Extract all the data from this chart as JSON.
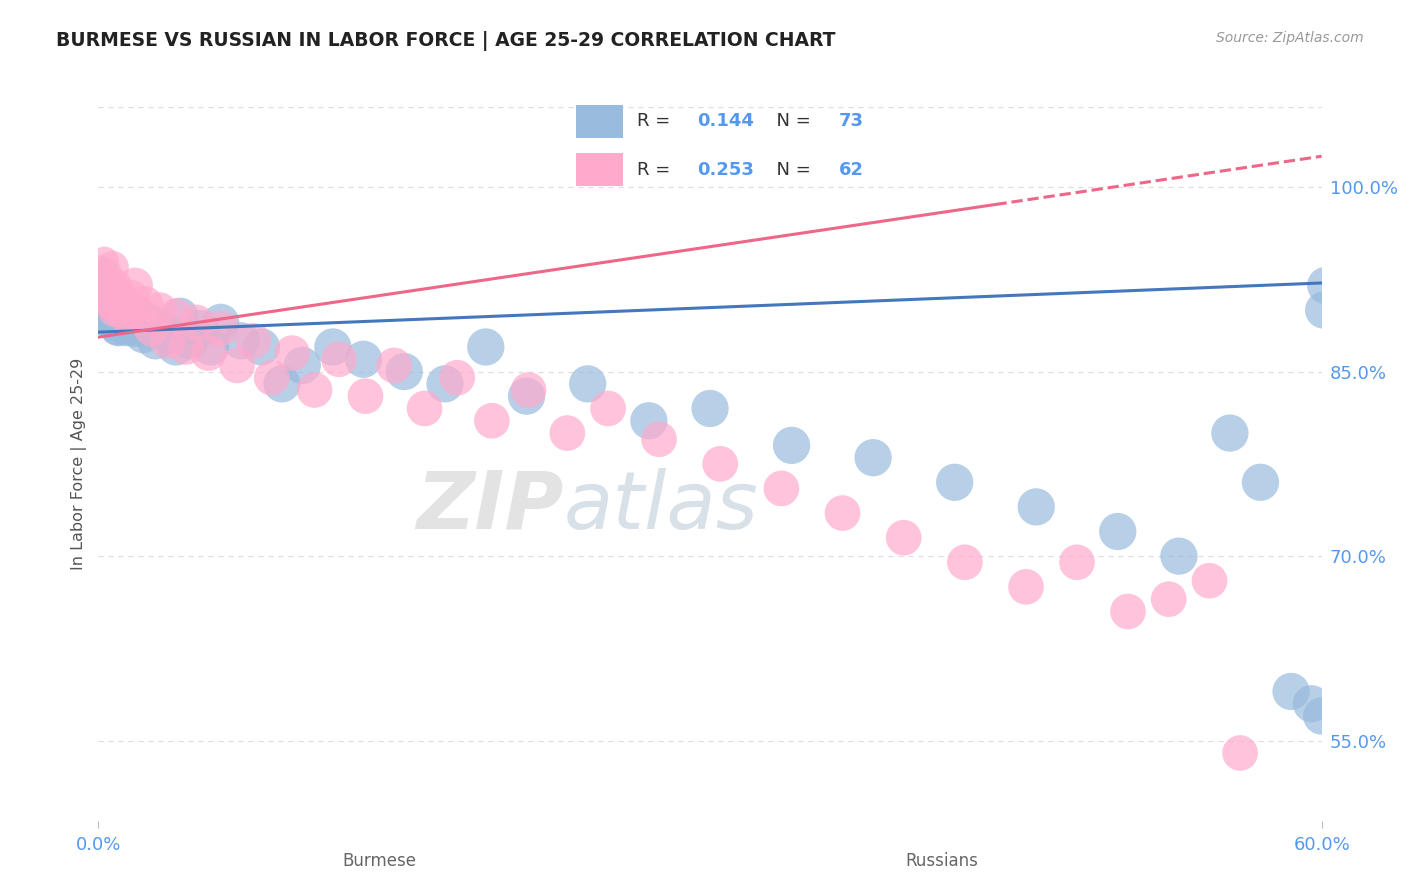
{
  "title": "BURMESE VS RUSSIAN IN LABOR FORCE | AGE 25-29 CORRELATION CHART",
  "source": "Source: ZipAtlas.com",
  "ylabel": "In Labor Force | Age 25-29",
  "x_label_burmese": "Burmese",
  "x_label_russians": "Russians",
  "xlim": [
    0.0,
    0.6
  ],
  "ylim": [
    0.485,
    1.065
  ],
  "yticks": [
    0.55,
    0.7,
    0.85,
    1.0
  ],
  "ytick_labels": [
    "55.0%",
    "70.0%",
    "85.0%",
    "100.0%"
  ],
  "xticks": [
    0.0,
    0.6
  ],
  "xtick_labels": [
    "0.0%",
    "60.0%"
  ],
  "R_burmese": 0.144,
  "N_burmese": 73,
  "R_russian": 0.253,
  "N_russian": 62,
  "blue_color": "#99BBDD",
  "pink_color": "#FFAACC",
  "blue_line_color": "#4477BB",
  "pink_line_color": "#EE6688",
  "axis_color": "#5599EE",
  "title_color": "#222222",
  "grid_color": "#DDDDDD",
  "watermark_zip": "ZIP",
  "watermark_atlas": "atlas",
  "burmese_trend_x": [
    0.0,
    0.6
  ],
  "burmese_trend_y": [
    0.882,
    0.922
  ],
  "russian_trend_x": [
    0.0,
    0.6
  ],
  "russian_trend_y": [
    0.878,
    1.025
  ],
  "russian_trend_dashed_start": 0.44,
  "burmese_x": [
    0.001,
    0.001,
    0.001,
    0.002,
    0.002,
    0.002,
    0.002,
    0.003,
    0.003,
    0.003,
    0.003,
    0.004,
    0.004,
    0.004,
    0.005,
    0.005,
    0.005,
    0.006,
    0.006,
    0.006,
    0.007,
    0.007,
    0.008,
    0.008,
    0.009,
    0.009,
    0.01,
    0.01,
    0.011,
    0.012,
    0.013,
    0.014,
    0.015,
    0.016,
    0.018,
    0.02,
    0.022,
    0.025,
    0.028,
    0.03,
    0.035,
    0.038,
    0.04,
    0.045,
    0.05,
    0.055,
    0.06,
    0.07,
    0.08,
    0.09,
    0.1,
    0.115,
    0.13,
    0.15,
    0.17,
    0.19,
    0.21,
    0.24,
    0.27,
    0.3,
    0.34,
    0.38,
    0.42,
    0.46,
    0.5,
    0.53,
    0.555,
    0.57,
    0.585,
    0.595,
    0.6,
    0.601,
    0.602
  ],
  "burmese_y": [
    0.92,
    0.91,
    0.9,
    0.925,
    0.915,
    0.905,
    0.895,
    0.93,
    0.92,
    0.91,
    0.89,
    0.925,
    0.915,
    0.9,
    0.92,
    0.91,
    0.895,
    0.915,
    0.905,
    0.89,
    0.91,
    0.895,
    0.905,
    0.89,
    0.9,
    0.885,
    0.9,
    0.885,
    0.895,
    0.89,
    0.895,
    0.885,
    0.89,
    0.9,
    0.885,
    0.895,
    0.88,
    0.89,
    0.875,
    0.885,
    0.88,
    0.87,
    0.895,
    0.875,
    0.885,
    0.87,
    0.89,
    0.875,
    0.87,
    0.84,
    0.855,
    0.87,
    0.86,
    0.85,
    0.84,
    0.87,
    0.83,
    0.84,
    0.81,
    0.82,
    0.79,
    0.78,
    0.76,
    0.74,
    0.72,
    0.7,
    0.8,
    0.76,
    0.59,
    0.58,
    0.57,
    0.9,
    0.92
  ],
  "burmese_sizes": [
    25,
    25,
    25,
    30,
    30,
    30,
    30,
    35,
    35,
    35,
    35,
    40,
    40,
    40,
    40,
    40,
    40,
    45,
    45,
    45,
    45,
    45,
    50,
    50,
    50,
    50,
    55,
    55,
    55,
    55,
    55,
    55,
    55,
    55,
    60,
    60,
    60,
    60,
    60,
    60,
    60,
    60,
    60,
    60,
    60,
    60,
    60,
    60,
    60,
    60,
    60,
    60,
    60,
    60,
    60,
    60,
    60,
    60,
    60,
    60,
    60,
    60,
    60,
    60,
    60,
    60,
    60,
    60,
    60,
    60,
    60,
    60,
    60
  ],
  "russian_x": [
    0.001,
    0.001,
    0.002,
    0.002,
    0.002,
    0.003,
    0.003,
    0.003,
    0.004,
    0.004,
    0.004,
    0.005,
    0.005,
    0.006,
    0.006,
    0.007,
    0.007,
    0.008,
    0.008,
    0.009,
    0.01,
    0.011,
    0.012,
    0.014,
    0.016,
    0.018,
    0.02,
    0.023,
    0.026,
    0.03,
    0.034,
    0.038,
    0.043,
    0.048,
    0.054,
    0.06,
    0.068,
    0.076,
    0.085,
    0.095,
    0.106,
    0.118,
    0.131,
    0.145,
    0.16,
    0.176,
    0.193,
    0.211,
    0.23,
    0.25,
    0.275,
    0.305,
    0.335,
    0.365,
    0.395,
    0.425,
    0.455,
    0.48,
    0.505,
    0.525,
    0.545,
    0.56
  ],
  "russian_y": [
    0.935,
    0.92,
    0.93,
    0.915,
    0.925,
    0.94,
    0.92,
    0.91,
    0.93,
    0.915,
    0.925,
    0.91,
    0.92,
    0.905,
    0.915,
    0.935,
    0.91,
    0.92,
    0.9,
    0.915,
    0.91,
    0.9,
    0.905,
    0.895,
    0.91,
    0.92,
    0.895,
    0.905,
    0.885,
    0.9,
    0.875,
    0.895,
    0.87,
    0.89,
    0.865,
    0.885,
    0.855,
    0.875,
    0.845,
    0.865,
    0.835,
    0.86,
    0.83,
    0.855,
    0.82,
    0.845,
    0.81,
    0.835,
    0.8,
    0.82,
    0.795,
    0.775,
    0.755,
    0.735,
    0.715,
    0.695,
    0.675,
    0.695,
    0.655,
    0.665,
    0.68,
    0.54
  ],
  "russian_sizes": [
    25,
    25,
    30,
    30,
    30,
    35,
    35,
    35,
    40,
    40,
    40,
    40,
    40,
    45,
    45,
    45,
    45,
    50,
    50,
    50,
    55,
    55,
    55,
    55,
    55,
    55,
    55,
    55,
    55,
    55,
    55,
    55,
    55,
    55,
    55,
    55,
    55,
    55,
    55,
    55,
    55,
    55,
    55,
    55,
    55,
    55,
    55,
    55,
    55,
    55,
    55,
    55,
    55,
    55,
    55,
    55,
    55,
    55,
    55,
    55,
    55,
    55
  ]
}
